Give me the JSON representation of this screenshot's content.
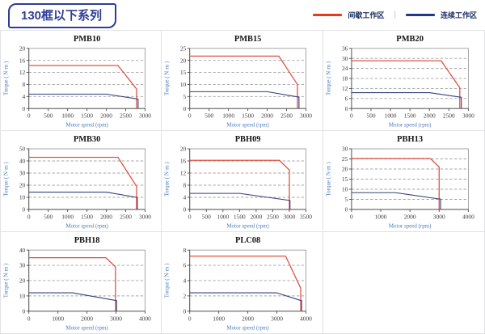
{
  "header": {
    "title": "130框以下系列",
    "legend_separator": "|",
    "legend": [
      {
        "label": "间歇工作区",
        "color": "#e8391d"
      },
      {
        "label": "连续工作区",
        "color": "#1f3c88"
      }
    ]
  },
  "colors": {
    "intermittent_curve": "#e05243",
    "continuous_curve": "#33427a",
    "axis_label_blue": "#4a7dbf",
    "badge_navy": "#2f3d96"
  },
  "chart_data": [
    {
      "type": "line",
      "title": "PMB10",
      "xlabel": "Motor speed (rpm)",
      "ylabel": "Torque ( N·m )",
      "xlim": [
        0,
        3000
      ],
      "ylim": [
        0,
        20
      ],
      "xticks": [
        0,
        500,
        1000,
        1500,
        2000,
        2500,
        3000
      ],
      "yticks": [
        0,
        4,
        8,
        12,
        16,
        20
      ],
      "grid": "horizontal-dashed",
      "series": [
        {
          "name": "间歇工作区",
          "color": "#e05243",
          "points": [
            [
              0,
              14.3
            ],
            [
              2300,
              14.3
            ],
            [
              2780,
              6.5
            ],
            [
              2780,
              0
            ]
          ]
        },
        {
          "name": "连续工作区",
          "color": "#33427a",
          "points": [
            [
              0,
              4.8
            ],
            [
              2000,
              4.8
            ],
            [
              2800,
              3.2
            ],
            [
              2820,
              3.1
            ],
            [
              2820,
              0
            ]
          ]
        }
      ]
    },
    {
      "type": "line",
      "title": "PMB15",
      "xlabel": "Motor speed (rpm)",
      "ylabel": "Torque ( N·m )",
      "xlim": [
        0,
        3000
      ],
      "ylim": [
        0,
        25
      ],
      "xticks": [
        0,
        500,
        1000,
        1500,
        2000,
        2500,
        3000
      ],
      "yticks": [
        0,
        5,
        10,
        15,
        20,
        25
      ],
      "grid": "horizontal-dashed",
      "series": [
        {
          "name": "间歇工作区",
          "color": "#e05243",
          "points": [
            [
              0,
              21.8
            ],
            [
              2300,
              21.8
            ],
            [
              2780,
              10
            ],
            [
              2780,
              0
            ]
          ]
        },
        {
          "name": "连续工作区",
          "color": "#33427a",
          "points": [
            [
              0,
              7
            ],
            [
              2000,
              7
            ],
            [
              2800,
              4.8
            ],
            [
              2820,
              4.8
            ],
            [
              2820,
              0
            ]
          ]
        }
      ]
    },
    {
      "type": "line",
      "title": "PMB20",
      "xlabel": "Motor speed (rpm)",
      "ylabel": "Torque ( N·m )",
      "xlim": [
        0,
        3000
      ],
      "ylim": [
        0,
        36
      ],
      "xticks": [
        0,
        500,
        1000,
        1500,
        2000,
        2500,
        3000
      ],
      "yticks": [
        0,
        6,
        12,
        18,
        24,
        30,
        36
      ],
      "grid": "horizontal-dashed",
      "series": [
        {
          "name": "间歇工作区",
          "color": "#e05243",
          "points": [
            [
              0,
              28.6
            ],
            [
              2300,
              28.6
            ],
            [
              2780,
              12.5
            ],
            [
              2780,
              0
            ]
          ]
        },
        {
          "name": "连续工作区",
          "color": "#33427a",
          "points": [
            [
              0,
              9.5
            ],
            [
              2000,
              9.5
            ],
            [
              2800,
              6.8
            ],
            [
              2820,
              6.8
            ],
            [
              2820,
              0
            ]
          ]
        }
      ]
    },
    {
      "type": "line",
      "title": "PMB30",
      "xlabel": "Motor speed (rpm)",
      "ylabel": "Torque ( N·m )",
      "xlim": [
        0,
        3000
      ],
      "ylim": [
        0,
        50
      ],
      "xticks": [
        0,
        500,
        1000,
        1500,
        2000,
        2500,
        3000
      ],
      "yticks": [
        0,
        10,
        20,
        30,
        40,
        50
      ],
      "grid": "horizontal-dashed",
      "series": [
        {
          "name": "间歇工作区",
          "color": "#e05243",
          "points": [
            [
              0,
              43
            ],
            [
              2300,
              43
            ],
            [
              2780,
              19
            ],
            [
              2780,
              0
            ]
          ]
        },
        {
          "name": "连续工作区",
          "color": "#33427a",
          "points": [
            [
              0,
              14.3
            ],
            [
              2000,
              14.3
            ],
            [
              2780,
              10
            ],
            [
              2800,
              10
            ],
            [
              2800,
              0
            ]
          ]
        }
      ]
    },
    {
      "type": "line",
      "title": "PBH09",
      "xlabel": "Motor speed (rpm)",
      "ylabel": "Torque ( N·m )",
      "xlim": [
        0,
        3500
      ],
      "ylim": [
        0,
        20
      ],
      "xticks": [
        0,
        500,
        1000,
        1500,
        2000,
        2500,
        3000,
        3500
      ],
      "yticks": [
        0,
        4,
        8,
        12,
        16,
        20
      ],
      "grid": "horizontal-dashed",
      "series": [
        {
          "name": "间歇工作区",
          "color": "#e05243",
          "points": [
            [
              0,
              16.2
            ],
            [
              2700,
              16.2
            ],
            [
              3000,
              13
            ],
            [
              3000,
              0
            ]
          ]
        },
        {
          "name": "连续工作区",
          "color": "#33427a",
          "points": [
            [
              0,
              5.3
            ],
            [
              1500,
              5.3
            ],
            [
              3000,
              3
            ],
            [
              3020,
              3
            ],
            [
              3020,
              0
            ]
          ]
        }
      ]
    },
    {
      "type": "line",
      "title": "PBH13",
      "xlabel": "Motor speed (rpm)",
      "ylabel": "Torque ( N·m )",
      "xlim": [
        0,
        4000
      ],
      "ylim": [
        0,
        30
      ],
      "xticks": [
        0,
        1000,
        2000,
        3000,
        4000
      ],
      "yticks": [
        0,
        5,
        10,
        15,
        20,
        25,
        30
      ],
      "grid": "horizontal-dashed",
      "series": [
        {
          "name": "间歇工作区",
          "color": "#e05243",
          "points": [
            [
              0,
              25.2
            ],
            [
              2700,
              25.2
            ],
            [
              3000,
              21
            ],
            [
              3000,
              0
            ]
          ]
        },
        {
          "name": "连续工作区",
          "color": "#33427a",
          "points": [
            [
              0,
              8.3
            ],
            [
              1500,
              8.3
            ],
            [
              3000,
              5.2
            ],
            [
              3050,
              5.2
            ],
            [
              3050,
              0
            ]
          ]
        }
      ]
    },
    {
      "type": "line",
      "title": "PBH18",
      "xlabel": "Motor speed (rpm)",
      "ylabel": "Torque ( N·m )",
      "xlim": [
        0,
        4000
      ],
      "ylim": [
        0,
        40
      ],
      "xticks": [
        0,
        1000,
        2000,
        3000,
        4000
      ],
      "yticks": [
        0,
        10,
        20,
        30,
        40
      ],
      "grid": "horizontal-dashed",
      "series": [
        {
          "name": "间歇工作区",
          "color": "#e05243",
          "points": [
            [
              0,
              35
            ],
            [
              2650,
              35
            ],
            [
              2980,
              29
            ],
            [
              2980,
              0
            ]
          ]
        },
        {
          "name": "连续工作区",
          "color": "#33427a",
          "points": [
            [
              0,
              12
            ],
            [
              1500,
              12
            ],
            [
              3000,
              7
            ],
            [
              3020,
              7
            ],
            [
              3020,
              0
            ]
          ]
        }
      ]
    },
    {
      "type": "line",
      "title": "PLC08",
      "xlabel": "Motor speed (rpm)",
      "ylabel": "Torque ( N·m )",
      "xlim": [
        0,
        4000
      ],
      "ylim": [
        0,
        8
      ],
      "xticks": [
        0,
        1000,
        2000,
        3000,
        4000
      ],
      "yticks": [
        0,
        2,
        4,
        6,
        8
      ],
      "grid": "horizontal-dashed",
      "series": [
        {
          "name": "间歇工作区",
          "color": "#e05243",
          "points": [
            [
              0,
              7.2
            ],
            [
              3300,
              7.2
            ],
            [
              3820,
              3
            ],
            [
              3820,
              0
            ]
          ]
        },
        {
          "name": "连续工作区",
          "color": "#33427a",
          "points": [
            [
              0,
              2.4
            ],
            [
              3000,
              2.4
            ],
            [
              3820,
              1.4
            ],
            [
              3850,
              1.4
            ],
            [
              3850,
              0
            ]
          ]
        }
      ]
    }
  ]
}
